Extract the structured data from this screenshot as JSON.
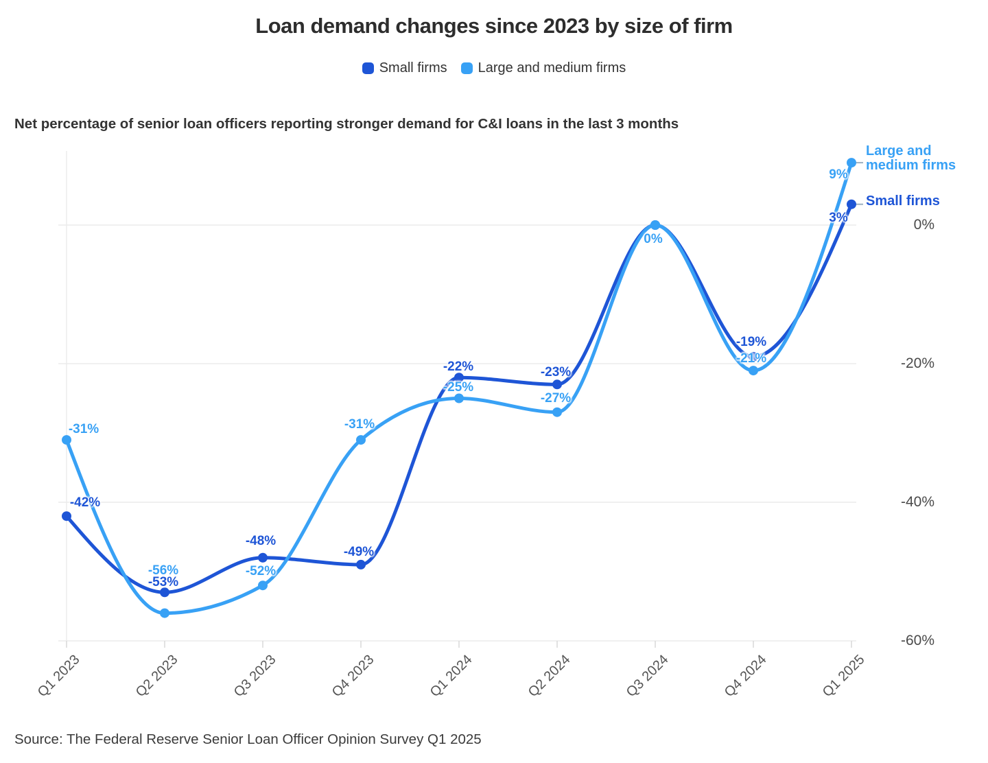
{
  "title": "Loan demand changes since 2023 by size of firm",
  "subtitle": "Net percentage of senior loan officers reporting stronger demand for C&I loans in the last 3 months",
  "source": "Source: The Federal Reserve Senior Loan Officer Opinion Survey Q1 2025",
  "colors": {
    "small_firms": "#1e55d6",
    "large_medium_firms": "#38a1f5",
    "grid": "#ebebeb",
    "tick": "#d8d8d8",
    "axis_text": "#4a4a4a",
    "connector": "#9db0c0"
  },
  "legend": {
    "items": [
      {
        "label": "Small firms",
        "color": "#1e55d6"
      },
      {
        "label": "Large and medium firms",
        "color": "#38a1f5"
      }
    ]
  },
  "chart_data": {
    "type": "line",
    "title": "Loan demand changes since 2023 by size of firm",
    "subtitle": "Net percentage of senior loan officers reporting stronger demand for C&I loans in the last 3 months",
    "categories": [
      "Q1 2023",
      "Q2 2023",
      "Q3 2023",
      "Q4 2023",
      "Q1 2024",
      "Q2 2024",
      "Q3 2024",
      "Q4 2024",
      "Q1 2025"
    ],
    "y_ticks": [
      {
        "label": "0%",
        "value": 0
      },
      {
        "label": "-20%",
        "value": -20
      },
      {
        "label": "-40%",
        "value": -40
      },
      {
        "label": "-60%",
        "value": -60
      }
    ],
    "ylim": [
      -60,
      12
    ],
    "grid": "horizontal",
    "legend_position": "top",
    "curve": "monotone",
    "series": [
      {
        "name": "Small firms",
        "color": "#1e55d6",
        "values": [
          -42,
          -53,
          -48,
          -49,
          -22,
          -23,
          0,
          -19,
          3
        ],
        "point_labels": [
          "-42%",
          "-53%",
          "-48%",
          "-49%",
          "-22%",
          "-23%",
          null,
          "-19%",
          "3%"
        ],
        "end_label_lines": [
          "Small firms"
        ]
      },
      {
        "name": "Large and medium firms",
        "color": "#38a1f5",
        "values": [
          -31,
          -56,
          -52,
          -31,
          -25,
          -27,
          0,
          -21,
          9
        ],
        "point_labels": [
          "-31%",
          "-56%",
          "-52%",
          "-31%",
          "-25%",
          "-27%",
          "0%",
          "-21%",
          "9%"
        ],
        "end_label_lines": [
          "Large and",
          "medium firms"
        ]
      }
    ],
    "label_offsets": [
      [
        [
          27,
          -30
        ],
        [
          -2,
          -25
        ],
        [
          -3,
          -35
        ],
        [
          -3,
          -29
        ],
        [
          -1,
          -26
        ],
        [
          -2,
          -28
        ],
        null,
        [
          -3,
          -32
        ],
        [
          -19,
          9
        ]
      ],
      [
        [
          25,
          -26
        ],
        [
          -2,
          -73
        ],
        [
          -3,
          -31
        ],
        [
          -2,
          -33
        ],
        [
          -1,
          -27
        ],
        [
          -2,
          -31
        ],
        [
          -3,
          10
        ],
        [
          -3,
          -28
        ],
        [
          -19,
          7
        ]
      ]
    ]
  }
}
